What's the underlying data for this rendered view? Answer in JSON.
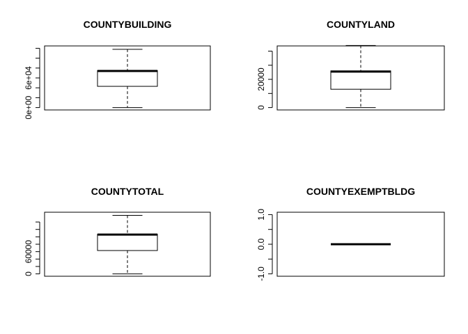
{
  "chart_data": [
    {
      "type": "boxplot",
      "title": "COUNTYBUILDING",
      "ylim": [
        0,
        120000
      ],
      "yticks": [
        0,
        20000,
        40000,
        60000,
        80000,
        100000,
        120000
      ],
      "ytick_labels": [
        "0e+00",
        "",
        "",
        "6e+04",
        "",
        "",
        ""
      ],
      "box": {
        "min": 0,
        "q1": 43000,
        "median": 74000,
        "q3": 75000,
        "max": 118000
      },
      "grid": false
    },
    {
      "type": "boxplot",
      "title": "COUNTYLAND",
      "ylim": [
        0,
        42000
      ],
      "yticks": [
        0,
        10000,
        20000,
        30000,
        40000
      ],
      "ytick_labels": [
        "0",
        "",
        "20000",
        "",
        ""
      ],
      "box": {
        "min": 0,
        "q1": 13000,
        "median": 25500,
        "q3": 26000,
        "max": 44000
      },
      "grid": false
    },
    {
      "type": "boxplot",
      "title": "COUNTYTOTAL",
      "ylim": [
        0,
        160000
      ],
      "yticks": [
        0,
        20000,
        40000,
        60000,
        80000,
        100000,
        120000,
        140000
      ],
      "ytick_labels": [
        "0",
        "",
        "",
        "60000",
        "",
        "",
        "",
        ""
      ],
      "box": {
        "min": 0,
        "q1": 63000,
        "median": 106000,
        "q3": 107000,
        "max": 158000
      },
      "grid": false
    },
    {
      "type": "boxplot",
      "title": "COUNTYEXEMPTBLDG",
      "ylim": [
        -1,
        1
      ],
      "yticks": [
        -1,
        -0.5,
        0,
        0.5,
        1
      ],
      "ytick_labels": [
        "-1.0",
        "",
        "0.0",
        "",
        "1.0"
      ],
      "box": {
        "min": 0,
        "q1": 0,
        "median": 0,
        "q3": 0,
        "max": 0
      },
      "grid": false
    }
  ]
}
